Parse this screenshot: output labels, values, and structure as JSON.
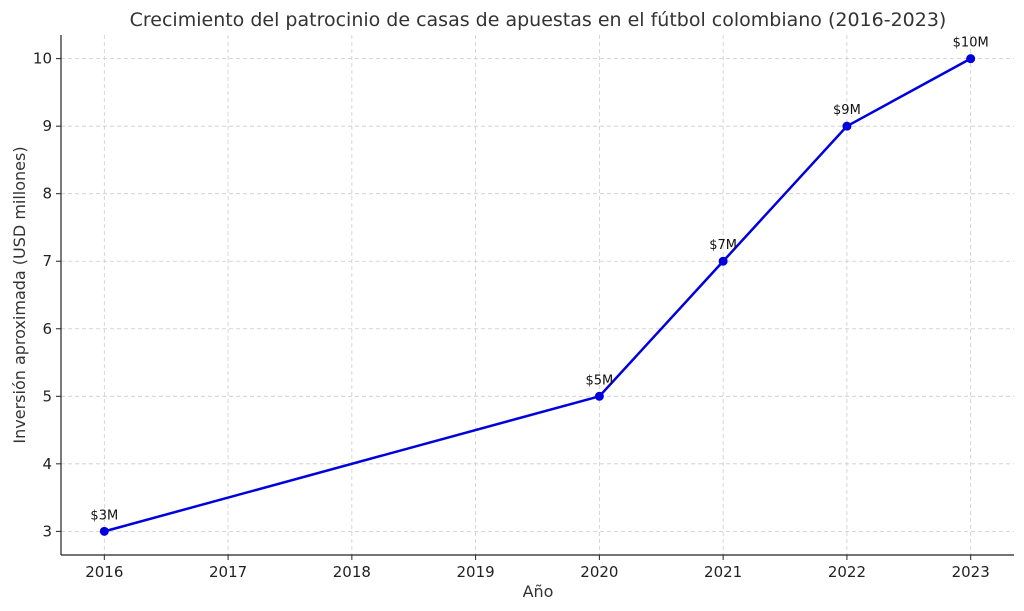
{
  "chart_data": {
    "type": "line",
    "title": "Crecimiento del patrocinio de casas de apuestas en el fútbol colombiano (2016-2023)",
    "xlabel": "Año",
    "ylabel": "Inversión aproximada (USD millones)",
    "x": [
      2016,
      2020,
      2021,
      2022,
      2023
    ],
    "xticks": [
      2016,
      2017,
      2018,
      2019,
      2020,
      2021,
      2022,
      2023
    ],
    "yticks": [
      3,
      4,
      5,
      6,
      7,
      8,
      9,
      10
    ],
    "xlim": [
      2015.65,
      2023.35
    ],
    "ylim": [
      2.65,
      10.35
    ],
    "grid": true,
    "series": [
      {
        "values": [
          3,
          5,
          7,
          9,
          10
        ],
        "labels": [
          "$3M",
          "$5M",
          "$7M",
          "$9M",
          "$10M"
        ],
        "color": "#0000dd",
        "marker": "circle"
      }
    ]
  }
}
